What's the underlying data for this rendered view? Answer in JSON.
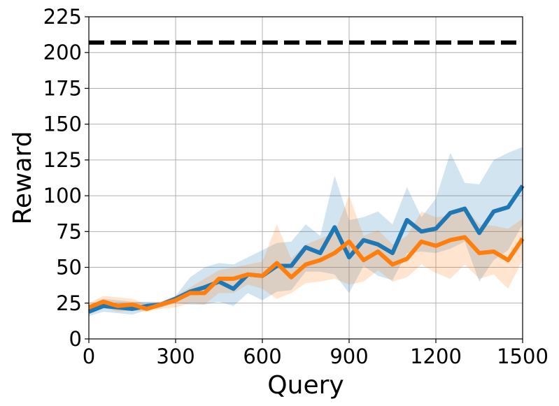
{
  "chart_data": {
    "type": "line",
    "xlabel": "Query",
    "ylabel": "Reward",
    "xlim": [
      0,
      1500
    ],
    "ylim": [
      0,
      225
    ],
    "xticks": [
      0,
      300,
      600,
      900,
      1200,
      1500
    ],
    "yticks": [
      0,
      25,
      50,
      75,
      100,
      125,
      150,
      175,
      200,
      225
    ],
    "grid": true,
    "x": [
      0,
      50,
      100,
      150,
      200,
      250,
      300,
      350,
      400,
      450,
      500,
      550,
      600,
      650,
      700,
      750,
      800,
      850,
      900,
      950,
      1000,
      1050,
      1100,
      1150,
      1200,
      1250,
      1300,
      1350,
      1400,
      1450,
      1500
    ],
    "reference_line": {
      "y": 207,
      "style": "dashed",
      "color": "#000000"
    },
    "series": [
      {
        "color": "#1f77b4",
        "values": [
          19,
          23,
          22,
          21,
          23,
          24,
          28,
          33,
          36,
          40,
          35,
          45,
          44,
          51,
          51,
          64,
          60,
          78,
          57,
          69,
          66,
          60,
          83,
          75,
          77,
          88,
          91,
          74,
          89,
          92,
          107
        ],
        "upper": [
          23,
          28,
          27,
          26,
          26,
          26,
          30,
          43,
          50,
          53,
          52,
          57,
          62,
          67,
          68,
          80,
          72,
          114,
          83,
          85,
          89,
          80,
          106,
          85,
          98,
          130,
          109,
          108,
          125,
          130,
          134
        ],
        "lower": [
          16,
          19,
          18,
          17,
          20,
          22,
          25,
          24,
          24,
          26,
          23,
          32,
          27,
          33,
          34,
          47,
          47,
          45,
          32,
          51,
          44,
          41,
          60,
          61,
          60,
          63,
          68,
          40,
          55,
          62,
          80
        ]
      },
      {
        "color": "#ff7f0e",
        "values": [
          22,
          26,
          23,
          24,
          21,
          24,
          27,
          32,
          32,
          42,
          42,
          45,
          44,
          53,
          43,
          52,
          55,
          60,
          68,
          55,
          61,
          52,
          56,
          68,
          65,
          69,
          71,
          60,
          61,
          55,
          70
        ],
        "upper": [
          25,
          30,
          29,
          28,
          24,
          26,
          30,
          36,
          42,
          48,
          50,
          52,
          54,
          80,
          56,
          66,
          70,
          74,
          100,
          72,
          76,
          66,
          72,
          89,
          85,
          86,
          92,
          80,
          79,
          77,
          84
        ],
        "lower": [
          19,
          22,
          19,
          20,
          19,
          21,
          22,
          25,
          24,
          32,
          32,
          38,
          35,
          28,
          32,
          39,
          40,
          42,
          38,
          40,
          48,
          40,
          43,
          52,
          46,
          42,
          52,
          42,
          45,
          35,
          55
        ]
      }
    ]
  }
}
